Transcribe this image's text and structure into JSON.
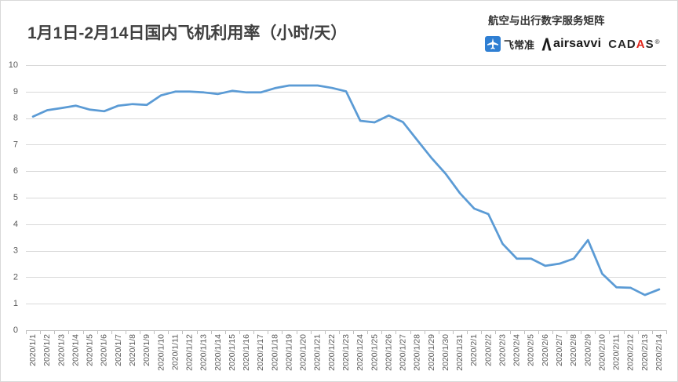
{
  "brand": {
    "tagline": "航空与出行数字服务矩阵",
    "logos": {
      "feichangzhun": {
        "name": "飞常准",
        "icon": "plane-icon"
      },
      "airsavvi": {
        "name": "airsavvi",
        "icon": "airsavvi-a-icon"
      },
      "cadas": {
        "name": "CADAS",
        "mark": "®"
      }
    },
    "colors": {
      "feichangzhun_blue": "#2F7FD3",
      "airsavvi_black": "#1A1A1A",
      "cadas_accent": "#E1251B"
    }
  },
  "chart_data": {
    "type": "line",
    "title": "1月1日-2月14日国内飞机利用率（小时/天）",
    "categories": [
      "2020/1/1",
      "2020/1/2",
      "2020/1/3",
      "2020/1/4",
      "2020/1/5",
      "2020/1/6",
      "2020/1/7",
      "2020/1/8",
      "2020/1/9",
      "2020/1/10",
      "2020/1/11",
      "2020/1/12",
      "2020/1/13",
      "2020/1/14",
      "2020/1/15",
      "2020/1/16",
      "2020/1/17",
      "2020/1/18",
      "2020/1/19",
      "2020/1/20",
      "2020/1/21",
      "2020/1/22",
      "2020/1/23",
      "2020/1/24",
      "2020/1/25",
      "2020/1/26",
      "2020/1/27",
      "2020/1/28",
      "2020/1/29",
      "2020/1/30",
      "2020/1/31",
      "2020/2/1",
      "2020/2/2",
      "2020/2/3",
      "2020/2/4",
      "2020/2/5",
      "2020/2/6",
      "2020/2/7",
      "2020/2/8",
      "2020/2/9",
      "2020/2/10",
      "2020/2/11",
      "2020/2/12",
      "2020/2/13",
      "2020/2/14"
    ],
    "series": [
      {
        "color": "#5B9BD5",
        "values": [
          8.06,
          8.3,
          8.38,
          8.47,
          8.32,
          8.26,
          8.47,
          8.53,
          8.5,
          8.86,
          9.0,
          9.0,
          8.97,
          8.91,
          9.03,
          8.97,
          8.97,
          9.13,
          9.23,
          9.23,
          9.23,
          9.14,
          9.01,
          7.9,
          7.84,
          8.1,
          7.85,
          7.17,
          6.5,
          5.9,
          5.17,
          4.59,
          4.38,
          3.26,
          2.7,
          2.7,
          2.43,
          2.51,
          2.7,
          3.4,
          2.13,
          1.62,
          1.6,
          1.33,
          1.54
        ]
      }
    ],
    "ylim": [
      0,
      10
    ],
    "yticks": [
      0,
      1,
      2,
      3,
      4,
      5,
      6,
      7,
      8,
      9,
      10
    ],
    "grid": true,
    "legend": false
  }
}
